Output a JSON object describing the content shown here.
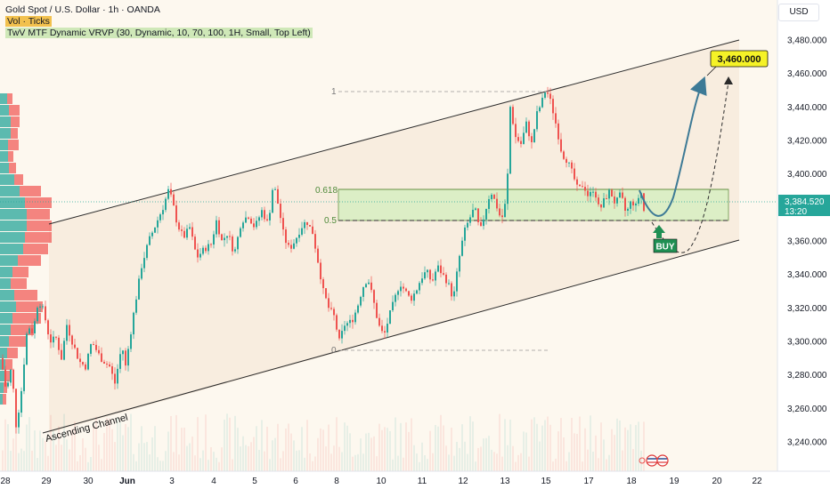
{
  "legend": {
    "symbol": "Gold Spot / U.S. Dollar · 1h · OANDA",
    "vol": "Vol · Ticks",
    "vrvp": "TwV MTF Dynamic VRVP (30, Dynamic, 10, 70, 100, 1H, Small, Top Left)"
  },
  "currency_button": "USD",
  "price_axis": {
    "ticks": [
      "3,480.000",
      "3,460.000",
      "3,440.000",
      "3,420.000",
      "3,400.000",
      "3,380.000",
      "3,360.000",
      "3,340.000",
      "3,320.000",
      "3,300.000",
      "3,280.000",
      "3,260.000",
      "3,240.000"
    ],
    "current_price": "3,384.520",
    "countdown": "13:20"
  },
  "time_axis": {
    "ticks": [
      "28",
      "29",
      "30",
      "Jun",
      "3",
      "4",
      "5",
      "6",
      "8",
      "10",
      "11",
      "12",
      "13",
      "15",
      "17",
      "18",
      "19",
      "20",
      "22"
    ]
  },
  "annotations": {
    "channel_label": "Ascending Channel",
    "target_label": "3,460.000",
    "buy_label": "BUY",
    "fib": [
      "1",
      "0.618",
      "0.5",
      "0"
    ]
  },
  "colors": {
    "up": "#26a69a",
    "down": "#ef5350",
    "background": "#fdf8ef",
    "zone": "#d9efc4",
    "target_bg": "#f5f227",
    "arrow": "#3d7a96",
    "buy_bg": "#1f8f53"
  },
  "chart_data": {
    "type": "candlestick",
    "symbol": "XAUUSD",
    "timeframe": "1h",
    "ylim": [
      3225,
      3495
    ],
    "channel": {
      "upper": [
        [
          0.0,
          3371
        ],
        [
          1.0,
          3484
        ]
      ],
      "lower": [
        [
          0.0,
          3246
        ],
        [
          1.0,
          3360
        ]
      ]
    },
    "zone": [
      3371,
      3392
    ],
    "target": 3460,
    "current": 3384.52,
    "close_path": [
      [
        0,
        3290
      ],
      [
        6,
        3270
      ],
      [
        12,
        3285
      ],
      [
        17,
        3250
      ],
      [
        22,
        3265
      ],
      [
        30,
        3310
      ],
      [
        36,
        3305
      ],
      [
        42,
        3325
      ],
      [
        48,
        3318
      ],
      [
        55,
        3300
      ],
      [
        62,
        3302
      ],
      [
        68,
        3290
      ],
      [
        74,
        3310
      ],
      [
        80,
        3300
      ],
      [
        88,
        3288
      ],
      [
        95,
        3285
      ],
      [
        102,
        3300
      ],
      [
        112,
        3290
      ],
      [
        122,
        3285
      ],
      [
        128,
        3275
      ],
      [
        136,
        3298
      ],
      [
        140,
        3285
      ],
      [
        150,
        3320
      ],
      [
        158,
        3345
      ],
      [
        166,
        3360
      ],
      [
        174,
        3370
      ],
      [
        182,
        3380
      ],
      [
        188,
        3390
      ],
      [
        192,
        3385
      ],
      [
        198,
        3370
      ],
      [
        205,
        3362
      ],
      [
        212,
        3368
      ],
      [
        220,
        3350
      ],
      [
        228,
        3355
      ],
      [
        236,
        3358
      ],
      [
        242,
        3372
      ],
      [
        248,
        3360
      ],
      [
        255,
        3365
      ],
      [
        262,
        3352
      ],
      [
        270,
        3372
      ],
      [
        278,
        3375
      ],
      [
        285,
        3368
      ],
      [
        293,
        3378
      ],
      [
        300,
        3370
      ],
      [
        306,
        3395
      ],
      [
        312,
        3380
      ],
      [
        318,
        3362
      ],
      [
        324,
        3355
      ],
      [
        330,
        3360
      ],
      [
        337,
        3368
      ],
      [
        343,
        3372
      ],
      [
        350,
        3365
      ],
      [
        356,
        3348
      ],
      [
        362,
        3330
      ],
      [
        368,
        3320
      ],
      [
        374,
        3315
      ],
      [
        380,
        3300
      ],
      [
        386,
        3310
      ],
      [
        394,
        3312
      ],
      [
        400,
        3320
      ],
      [
        406,
        3332
      ],
      [
        412,
        3338
      ],
      [
        418,
        3325
      ],
      [
        424,
        3310
      ],
      [
        430,
        3303
      ],
      [
        436,
        3315
      ],
      [
        442,
        3325
      ],
      [
        448,
        3335
      ],
      [
        454,
        3330
      ],
      [
        460,
        3325
      ],
      [
        466,
        3330
      ],
      [
        472,
        3338
      ],
      [
        478,
        3342
      ],
      [
        484,
        3335
      ],
      [
        490,
        3345
      ],
      [
        496,
        3340
      ],
      [
        502,
        3335
      ],
      [
        508,
        3325
      ],
      [
        514,
        3348
      ],
      [
        520,
        3365
      ],
      [
        526,
        3373
      ],
      [
        532,
        3380
      ],
      [
        538,
        3365
      ],
      [
        544,
        3378
      ],
      [
        550,
        3390
      ],
      [
        556,
        3382
      ],
      [
        562,
        3372
      ],
      [
        568,
        3386
      ],
      [
        572,
        3440
      ],
      [
        578,
        3422
      ],
      [
        584,
        3418
      ],
      [
        590,
        3430
      ],
      [
        596,
        3418
      ],
      [
        602,
        3436
      ],
      [
        608,
        3444
      ],
      [
        612,
        3451
      ],
      [
        618,
        3442
      ],
      [
        624,
        3428
      ],
      [
        630,
        3412
      ],
      [
        636,
        3408
      ],
      [
        642,
        3400
      ],
      [
        648,
        3390
      ],
      [
        654,
        3394
      ],
      [
        660,
        3386
      ],
      [
        666,
        3392
      ],
      [
        672,
        3378
      ],
      [
        678,
        3385
      ],
      [
        684,
        3390
      ],
      [
        690,
        3382
      ],
      [
        696,
        3388
      ],
      [
        702,
        3376
      ],
      [
        708,
        3384
      ],
      [
        714,
        3380
      ],
      [
        718,
        3392
      ],
      [
        722,
        3378
      ]
    ]
  }
}
